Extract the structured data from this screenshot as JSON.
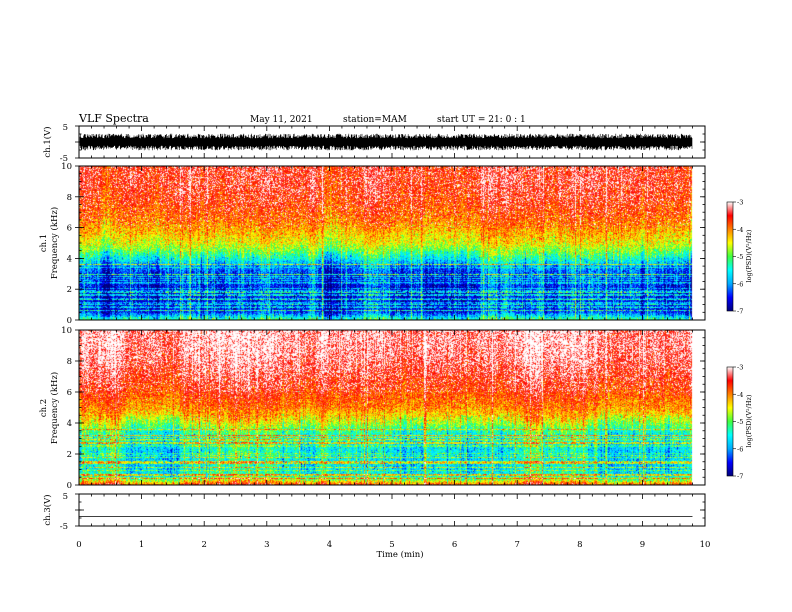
{
  "header": {
    "title": "VLF Spectra",
    "date": "May 11, 2021",
    "station": "station=MAM",
    "start": "start UT =  21: 0  : 1"
  },
  "colors": {
    "colormap": [
      "#00007a",
      "#0000ff",
      "#00aaff",
      "#00ffff",
      "#40ff40",
      "#ffff00",
      "#ff8000",
      "#ff0000",
      "#ffffff"
    ]
  },
  "chart_data": [
    {
      "type": "line",
      "panel": "ch1-waveform",
      "ylabel": "ch.1(V)",
      "ylim": [
        -5,
        5
      ],
      "yticks": [
        "5",
        "-5"
      ],
      "description_values": {
        "amplitude_range": [
          -2.6,
          2.6
        ]
      }
    },
    {
      "type": "heatmap",
      "panel": "ch1-spectrogram",
      "ylabel_lines": [
        "ch.1",
        "Frequency (kHz)"
      ],
      "ylim": [
        0,
        10
      ],
      "yticks": [
        "0",
        "2",
        "4",
        "6",
        "8",
        "10"
      ],
      "colorbar": {
        "label": "log(PSD)(V²/Hz)",
        "range": [
          -7,
          -3
        ],
        "ticks": [
          "-3",
          "-4",
          "-5",
          "-6",
          "-7"
        ]
      },
      "profile": {
        "freq_khz": [
          0,
          0.5,
          1,
          2,
          3,
          3.5,
          4,
          4.5,
          5,
          6,
          7,
          8,
          9,
          10
        ],
        "log_psd": [
          -5.2,
          -6.4,
          -6.5,
          -6.5,
          -6.3,
          -6.0,
          -5.4,
          -4.9,
          -4.5,
          -4.1,
          -3.8,
          -3.6,
          -3.5,
          -3.5
        ]
      }
    },
    {
      "type": "heatmap",
      "panel": "ch2-spectrogram",
      "ylabel_lines": [
        "ch.2",
        "Frequency (kHz)"
      ],
      "ylim": [
        0,
        10
      ],
      "yticks": [
        "0",
        "2",
        "4",
        "6",
        "8",
        "10"
      ],
      "colorbar": {
        "label": "log(PSD)(V²/Hz)",
        "range": [
          -7,
          -3
        ],
        "ticks": [
          "-3",
          "-4",
          "-5",
          "-6",
          "-7"
        ]
      },
      "profile": {
        "freq_khz": [
          0,
          0.5,
          1,
          2,
          3,
          3.5,
          4,
          4.5,
          5,
          6,
          7,
          8,
          9,
          10
        ],
        "log_psd": [
          -3.8,
          -5.4,
          -5.6,
          -5.6,
          -5.5,
          -5.2,
          -4.7,
          -4.3,
          -4.0,
          -3.7,
          -3.5,
          -3.3,
          -3.2,
          -3.2
        ]
      }
    },
    {
      "type": "line",
      "panel": "ch3-waveform",
      "ylabel": "ch.3(V)",
      "ylim": [
        -5,
        5
      ],
      "yticks": [
        "5",
        "-5"
      ],
      "description_values": {
        "constant_level": -2
      }
    }
  ],
  "xaxis": {
    "label": "Time (min)",
    "xlim": [
      0,
      10
    ],
    "ticks": [
      "0",
      "1",
      "2",
      "3",
      "4",
      "5",
      "6",
      "7",
      "8",
      "9",
      "10"
    ],
    "data_end_min": 9.8
  }
}
